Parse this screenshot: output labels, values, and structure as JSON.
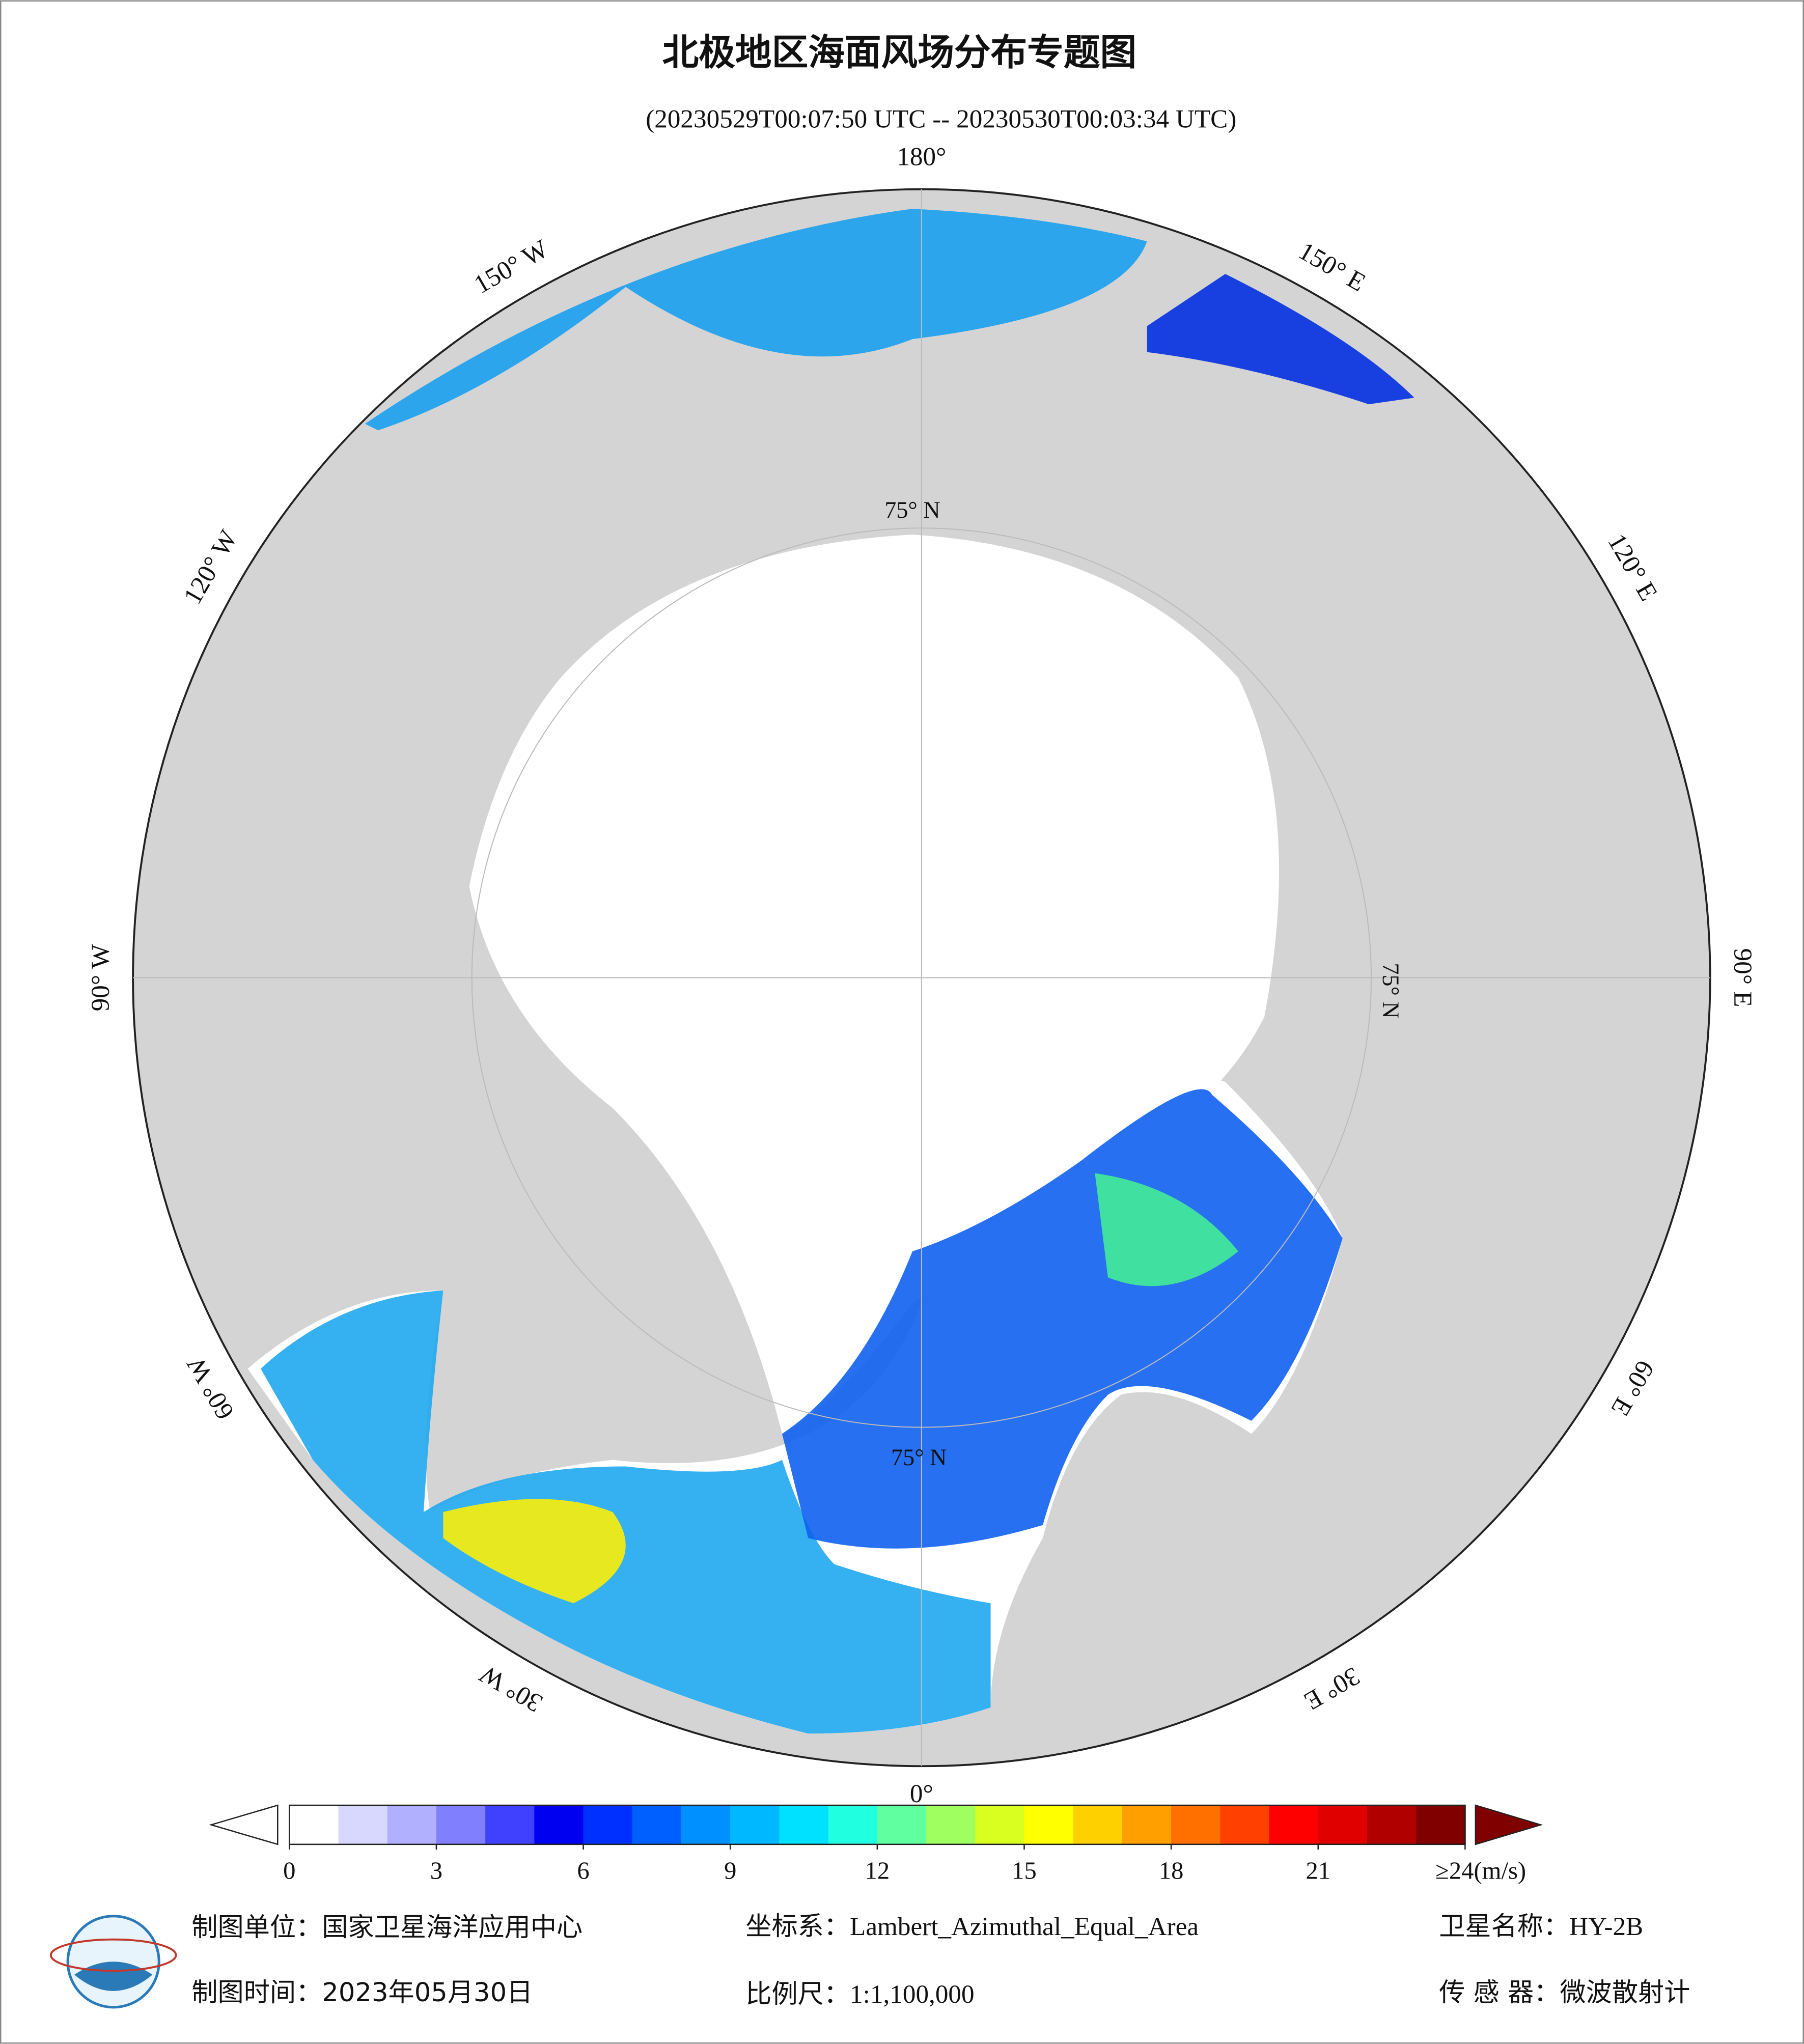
{
  "header": {
    "title": "北极地区海面风场分布专题图",
    "subtitle": "(20230529T00:07:50 UTC -- 20230530T00:03:34 UTC)"
  },
  "map": {
    "lon_labels": [
      "180°",
      "150° W",
      "120° W",
      "90° W",
      "60° W",
      "30° W",
      "0°",
      "30° E",
      "60° E",
      "90° E",
      "120° E",
      "150° E"
    ],
    "lat_label": "75° N"
  },
  "colorbar": {
    "range": [
      0,
      24
    ],
    "ticks": [
      0,
      3,
      6,
      9,
      12,
      15,
      18,
      {
        "value": 21,
        "label": "21"
      },
      {
        "value": 24,
        "label": "≥24(m/s)"
      }
    ],
    "colors": [
      "#ffffff",
      "#d8d8ff",
      "#b0b0ff",
      "#8080ff",
      "#4040ff",
      "#0000f0",
      "#0030ff",
      "#0060ff",
      "#0090ff",
      "#00b8ff",
      "#00e0ff",
      "#20ffe0",
      "#60ffa0",
      "#a0ff60",
      "#d8ff20",
      "#ffff00",
      "#ffd000",
      "#ffa000",
      "#ff7000",
      "#ff4000",
      "#ff0000",
      "#e00000",
      "#b00000",
      "#800000"
    ],
    "over_color": "#800000"
  },
  "footer": {
    "unit": "制图单位：国家卫星海洋应用中心",
    "crs": "坐标系：Lambert_Azimuthal_Equal_Area",
    "satellite": "卫星名称：HY-2B",
    "date": "制图时间：2023年05月30日",
    "scale": "比例尺：1:1,100,000",
    "sensor": "传 感 器：微波散射计"
  }
}
